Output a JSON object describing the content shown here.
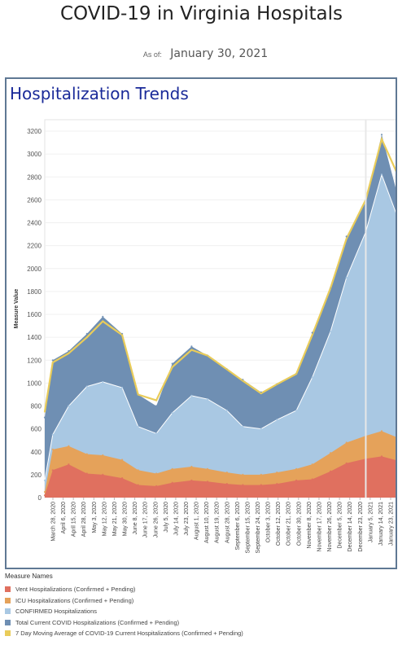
{
  "header": {
    "title": "COVID-19 in Virginia Hospitals",
    "as_of_label": "As of:",
    "as_of_date": "January 30, 2021"
  },
  "panel": {
    "title": "Hospitalization Trends"
  },
  "legend": {
    "title": "Measure Names",
    "items": [
      {
        "label": "Vent Hospitalizations (Confirmed + Pending)",
        "color": "#e0705f"
      },
      {
        "label": "ICU Hospitalizations (Confirmed + Pending)",
        "color": "#e5a25a"
      },
      {
        "label": "CONFIRMED Hospitalizations",
        "color": "#a9c8e3"
      },
      {
        "label": "Total Current COVID Hospitalizations (Confirmed + Pending)",
        "color": "#6f8fb3"
      },
      {
        "label": "7 Day Moving Average of COVID-19 Current Hospitalizations (Confirmed + Pending)",
        "color": "#e9cc5a"
      }
    ]
  },
  "chart_data": {
    "type": "area",
    "title": "Hospitalization Trends",
    "ylabel": "Measure Value",
    "xlabel": "",
    "ylim": [
      0,
      3300
    ],
    "yticks": [
      0,
      200,
      400,
      600,
      800,
      1000,
      1200,
      1400,
      1600,
      1800,
      2000,
      2200,
      2400,
      2600,
      2800,
      3000,
      3200
    ],
    "x_tick_labels": [
      "March 28, 2020",
      "April 6, 2020",
      "April 15, 2020",
      "April 28, 2020",
      "May 3, 2020",
      "May 12, 2020",
      "May 21, 2020",
      "May 30, 2020",
      "June 8, 2020",
      "June 17, 2020",
      "June 26, 2020",
      "July 5, 2020",
      "July 14, 2020",
      "July 23, 2020",
      "August 1, 2020",
      "August 10, 2020",
      "August 19, 2020",
      "August 28, 2020",
      "September 6, 2020",
      "September 15, 2020",
      "September 24, 2020",
      "October 3, 2020",
      "October 12, 2020",
      "October 21, 2020",
      "October 30, 2020",
      "November 8, 2020",
      "November 17, 2020",
      "November 26, 2020",
      "December 5, 2020",
      "December 14, 2020",
      "December 23, 2020",
      "January 5, 2021",
      "January 14, 2021",
      "January 23, 2021"
    ],
    "x": [
      "2020-03-25",
      "2020-04-01",
      "2020-04-15",
      "2020-05-01",
      "2020-05-15",
      "2020-06-01",
      "2020-06-15",
      "2020-07-01",
      "2020-07-15",
      "2020-08-01",
      "2020-08-15",
      "2020-09-01",
      "2020-09-15",
      "2020-10-01",
      "2020-10-15",
      "2020-11-01",
      "2020-11-15",
      "2020-12-01",
      "2020-12-15",
      "2021-01-01",
      "2021-01-15",
      "2021-01-30"
    ],
    "series": [
      {
        "name": "Vent Hospitalizations (Confirmed + Pending)",
        "values": [
          20,
          240,
          290,
          210,
          200,
          170,
          110,
          100,
          130,
          150,
          140,
          120,
          110,
          110,
          120,
          150,
          160,
          230,
          300,
          340,
          360,
          320
        ]
      },
      {
        "name": "ICU Hospitalizations (Confirmed + Pending)",
        "values": [
          50,
          420,
          450,
          380,
          370,
          330,
          240,
          210,
          250,
          270,
          250,
          220,
          200,
          200,
          220,
          250,
          290,
          390,
          480,
          540,
          580,
          520
        ]
      },
      {
        "name": "CONFIRMED Hospitalizations",
        "values": [
          150,
          550,
          800,
          970,
          1010,
          960,
          620,
          560,
          740,
          890,
          860,
          760,
          620,
          600,
          680,
          760,
          1050,
          1450,
          1920,
          2320,
          2820,
          2420
        ]
      },
      {
        "name": "Total Current COVID Hospitalizations (Confirmed + Pending)",
        "values": [
          700,
          1200,
          1280,
          1430,
          1580,
          1430,
          900,
          800,
          1170,
          1320,
          1240,
          1120,
          1030,
          920,
          990,
          1080,
          1440,
          1830,
          2280,
          2580,
          3170,
          2600
        ]
      },
      {
        "name": "7 Day Moving Average of COVID-19 Current Hospitalizations (Confirmed + Pending)",
        "values": [
          750,
          1180,
          1260,
          1400,
          1540,
          1420,
          900,
          850,
          1140,
          1290,
          1240,
          1120,
          1020,
          910,
          990,
          1080,
          1420,
          1830,
          2260,
          2600,
          3130,
          2800
        ]
      }
    ],
    "grid": true
  }
}
